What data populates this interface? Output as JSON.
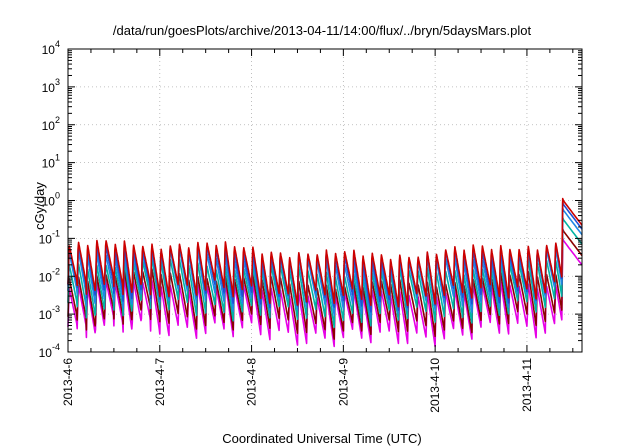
{
  "chart_data": {
    "type": "line",
    "title": "/data/run/goesPlots/archive/2013-04-11/14:00/flux/../bryn/5daysMars.plot",
    "xlabel": "Coordinated Universal Time (UTC)",
    "ylabel": "cGy/day",
    "yscale": "log",
    "ylim_exponents": [
      -4,
      4
    ],
    "y_tick_labels": [
      {
        "base": "10",
        "exp": "-4"
      },
      {
        "base": "10",
        "exp": "-3"
      },
      {
        "base": "10",
        "exp": "-2"
      },
      {
        "base": "10",
        "exp": "-1"
      },
      {
        "base": "10",
        "exp": "0"
      },
      {
        "base": "10",
        "exp": "1"
      },
      {
        "base": "10",
        "exp": "2"
      },
      {
        "base": "10",
        "exp": "3"
      },
      {
        "base": "10",
        "exp": "4"
      }
    ],
    "x_tick_labels": [
      "2013-4-6",
      "2013-4-7",
      "2013-4-8",
      "2013-4-9",
      "2013-4-10",
      "2013-4-11"
    ],
    "xlim_days": [
      0,
      5.6
    ],
    "grid": true,
    "legend": "none",
    "series_colors": [
      "#cc0000",
      "#1f4fd6",
      "#1e88e5",
      "#00b3a4",
      "#8b0000",
      "#e600e6"
    ],
    "series_offsets_decades": [
      0.05,
      -0.05,
      -0.2,
      -0.45,
      -0.75,
      -1.0
    ],
    "cycle_days": 0.1,
    "base_peak_log10": -1.3,
    "base_trough_log10": -2.5,
    "flare_start_day": 5.38,
    "flare_peak_log10": 0.0
  }
}
